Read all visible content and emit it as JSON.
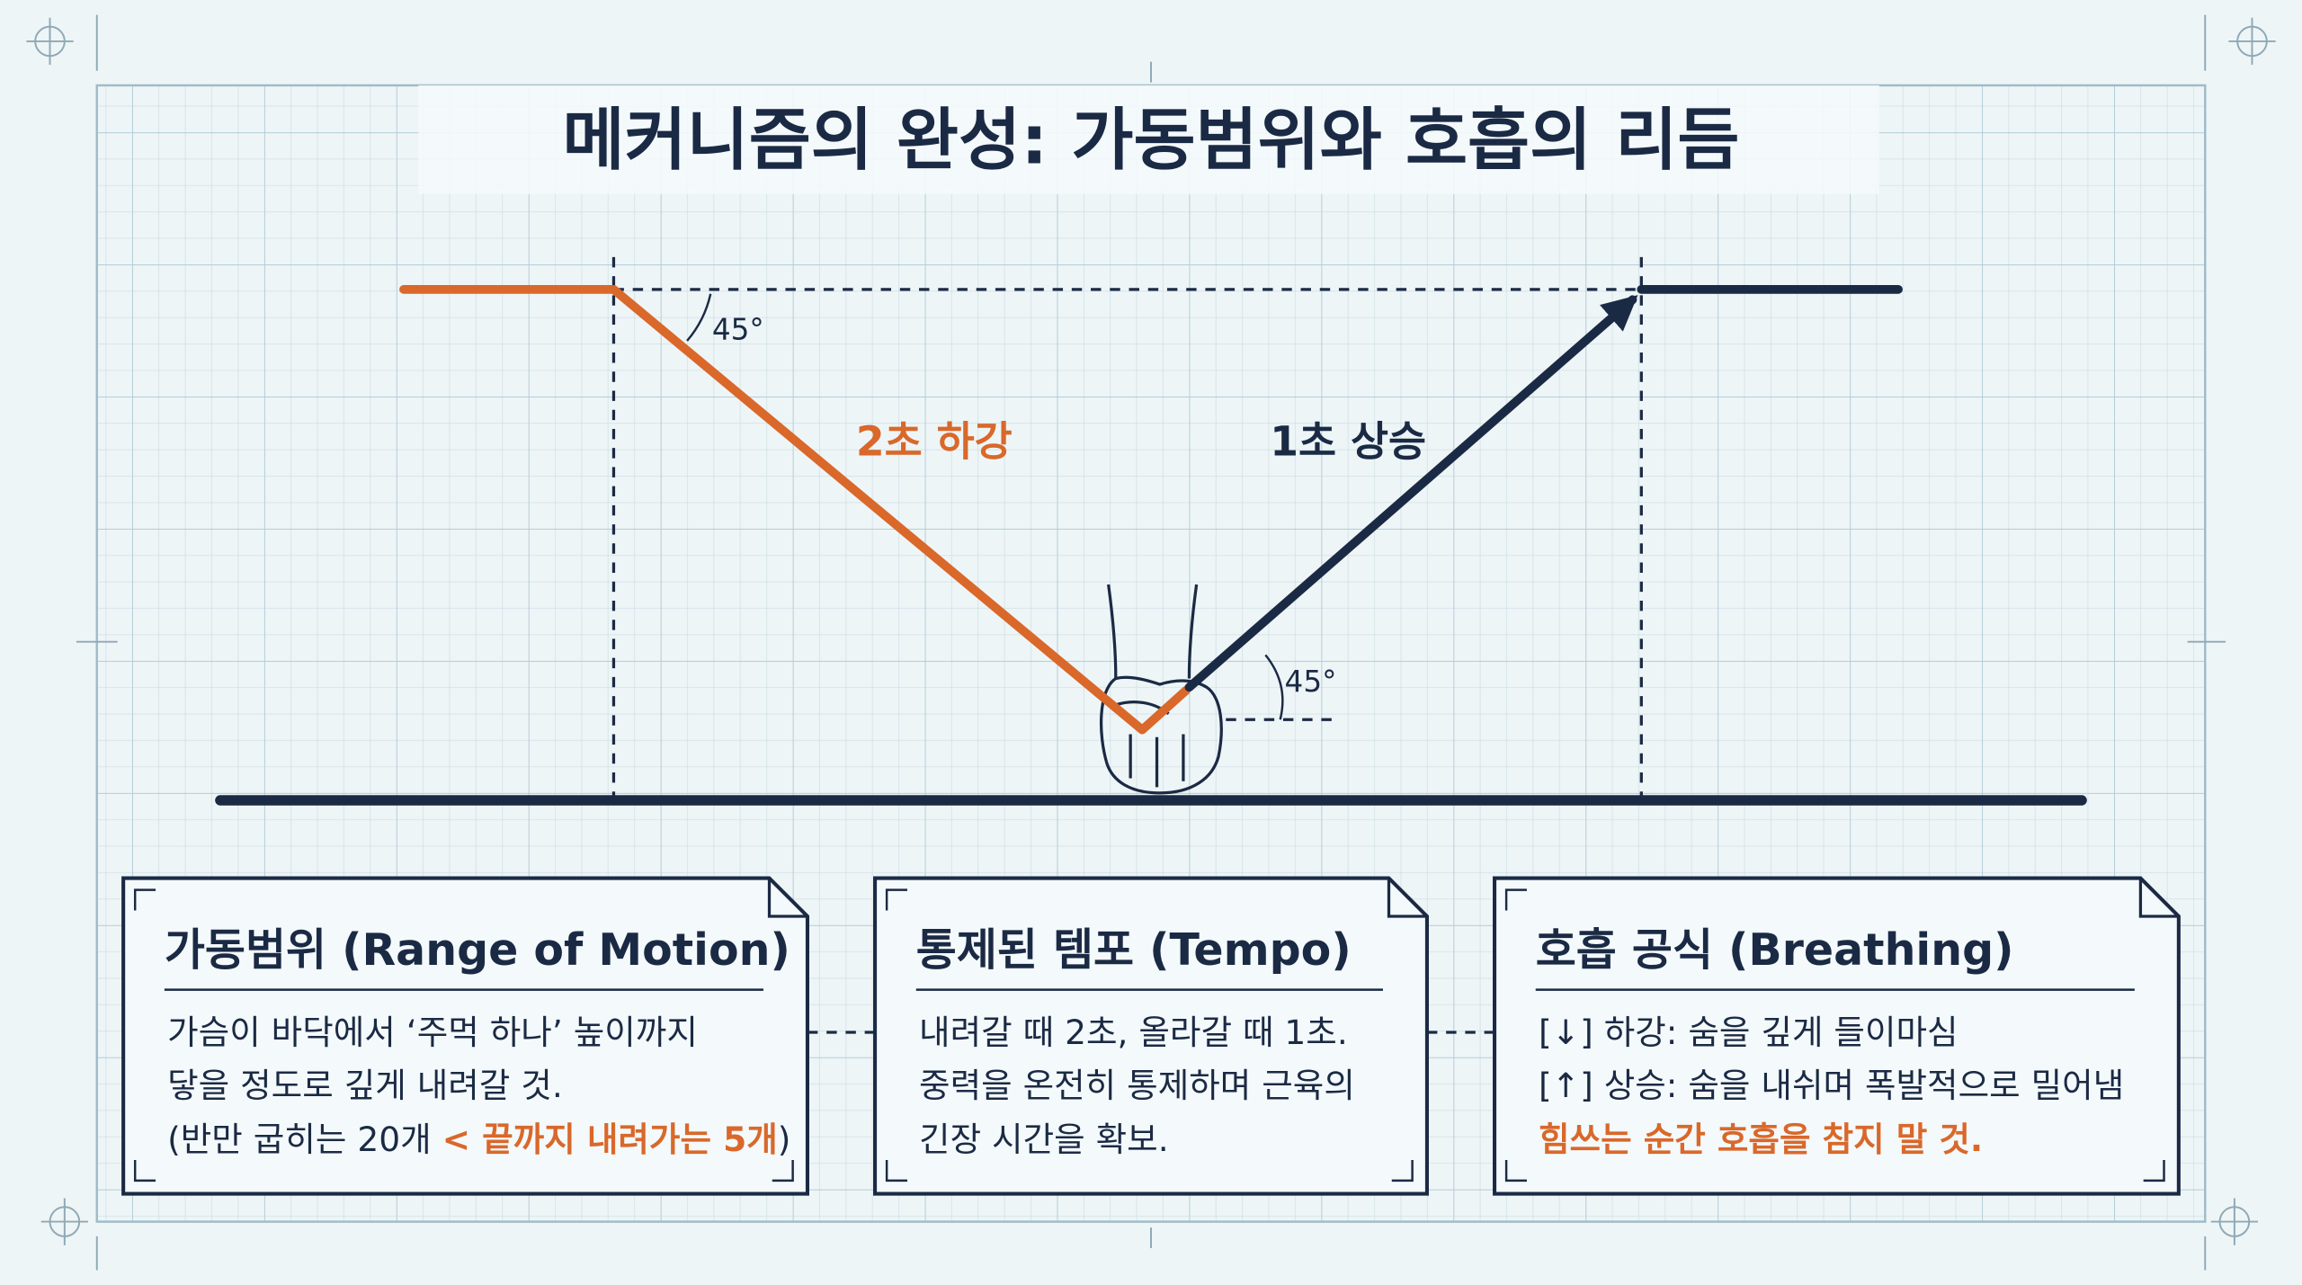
{
  "title": "메커니즘의 완성: 가동범위와 호흡의 리듬",
  "diagram": {
    "angle_top": "45°",
    "angle_bottom": "45°",
    "descent_label": "2초 하강",
    "ascent_label": "1초 상승"
  },
  "cards": [
    {
      "title": "가동범위 (Range of Motion)",
      "lines": [
        "가슴이 바닥에서 ‘주먹 하나’ 높이까지",
        "닿을 정도로 깊게 내려갈 것."
      ],
      "note": [
        "(반만 굽히는 20개 ",
        "< 끝까지 내려가는 5개",
        ")"
      ]
    },
    {
      "title": "통제된 템포 (Tempo)",
      "lines": [
        "내려갈 때 2초, 올라갈 때 1초.",
        "중력을 온전히 통제하며 근육의",
        "긴장 시간을 확보."
      ]
    },
    {
      "title": "호흡 공식 (Breathing)",
      "lines": [
        "[↓] 하강: 숨을 깊게 들이마심",
        "[↑] 상승: 숨을 내쉬며 폭발적으로 밀어냄"
      ],
      "warning": "힘쓰는 순간 호흡을 참지 말 것."
    }
  ]
}
